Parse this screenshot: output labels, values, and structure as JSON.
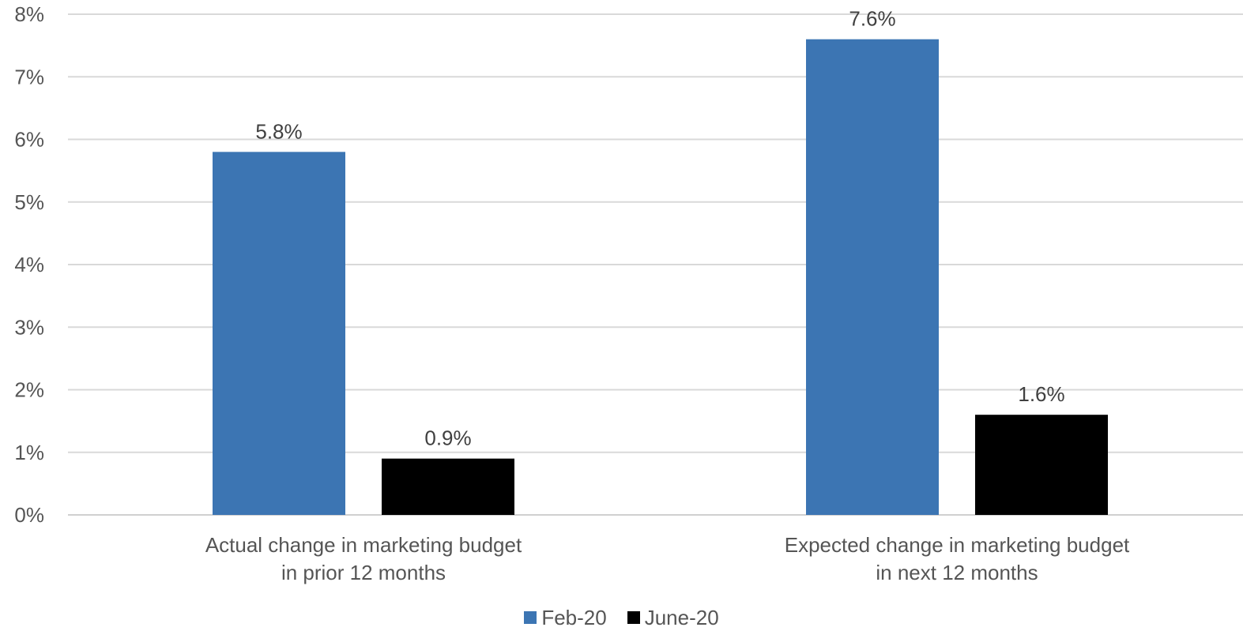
{
  "chart_data": {
    "type": "bar",
    "categories": [
      [
        "Actual change in marketing budget",
        "in prior 12 months"
      ],
      [
        "Expected change in marketing budget",
        "in next 12 months"
      ]
    ],
    "series": [
      {
        "name": "Feb-20",
        "color": "#3C75B3",
        "values": [
          5.8,
          7.6
        ],
        "labels": [
          "5.8%",
          "7.6%"
        ]
      },
      {
        "name": "June-20",
        "color": "#000000",
        "values": [
          0.9,
          1.6
        ],
        "labels": [
          "0.9%",
          "1.6%"
        ]
      }
    ],
    "ylim": [
      0,
      8
    ],
    "yticks": [
      "0%",
      "1%",
      "2%",
      "3%",
      "4%",
      "5%",
      "6%",
      "7%",
      "8%"
    ],
    "grid": true,
    "legend_position": "bottom"
  }
}
